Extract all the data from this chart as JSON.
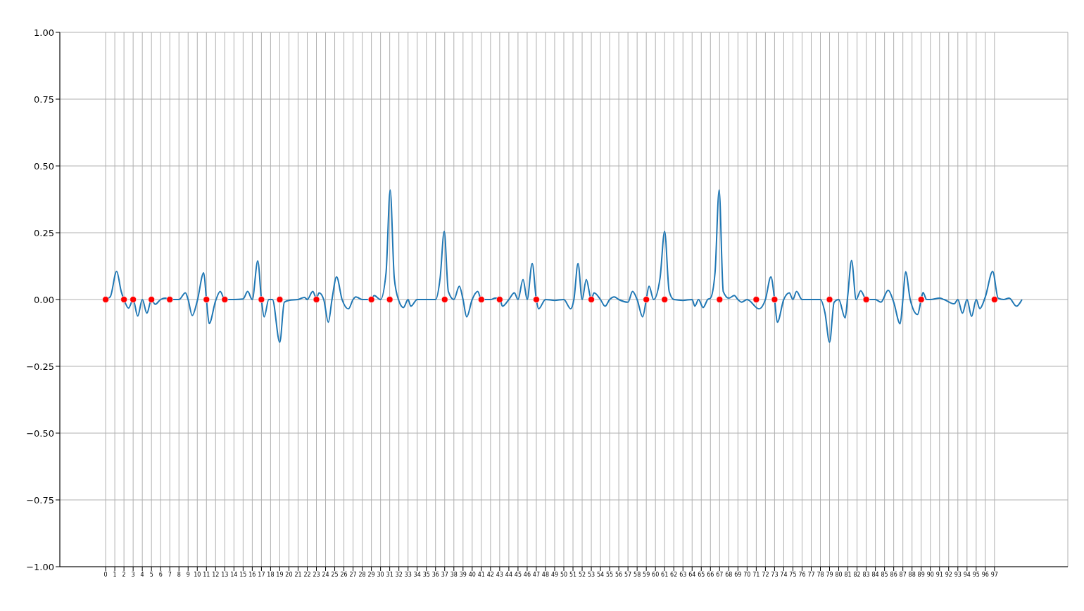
{
  "chart_data": {
    "type": "line",
    "xlim": [
      -5,
      105
    ],
    "ylim": [
      -1,
      1
    ],
    "xticks": [
      0,
      1,
      2,
      3,
      4,
      5,
      6,
      7,
      8,
      9,
      10,
      11,
      12,
      13,
      14,
      15,
      16,
      17,
      18,
      19,
      20,
      21,
      22,
      23,
      24,
      25,
      26,
      27,
      28,
      29,
      30,
      31,
      32,
      33,
      34,
      35,
      36,
      37,
      38,
      39,
      40,
      41,
      42,
      43,
      44,
      45,
      46,
      47,
      48,
      49,
      50,
      51,
      52,
      53,
      54,
      55,
      56,
      57,
      58,
      59,
      60,
      61,
      62,
      63,
      64,
      65,
      66,
      67,
      68,
      69,
      70,
      71,
      72,
      73,
      74,
      75,
      76,
      77,
      78,
      79,
      80,
      81,
      82,
      83,
      84,
      85,
      86,
      87,
      88,
      89,
      90,
      91,
      92,
      93,
      94,
      95,
      96,
      97
    ],
    "yticks": [
      {
        "value": -1,
        "label": "−1.00"
      },
      {
        "value": -0.75,
        "label": "−0.75"
      },
      {
        "value": -0.5,
        "label": "−0.50"
      },
      {
        "value": -0.25,
        "label": "−0.25"
      },
      {
        "value": 0,
        "label": "0.00"
      },
      {
        "value": 0.25,
        "label": "0.25"
      },
      {
        "value": 0.5,
        "label": "0.50"
      },
      {
        "value": 0.75,
        "label": "0.75"
      },
      {
        "value": 1,
        "label": "1.00"
      }
    ],
    "grid": true,
    "series": [
      {
        "color": "#1f77b4",
        "marker": "none",
        "x": [
          0,
          0.5,
          1.2,
          1.7,
          2,
          2.5,
          3,
          3.5,
          4,
          4.5,
          5,
          5.4,
          6,
          6.5,
          7,
          8,
          8.7,
          9,
          9.45,
          10,
          10.7,
          11,
          11.3,
          12,
          12.5,
          13,
          14,
          15,
          15.5,
          16,
          16.6,
          17,
          17.3,
          17.8,
          18.2,
          19,
          19.5,
          20,
          21,
          21.7,
          22,
          22.6,
          23,
          23.3,
          23.8,
          24.3,
          24.7,
          25.2,
          25.8,
          26.5,
          27,
          27.3,
          28,
          29,
          29.3,
          30,
          30.6,
          31.05,
          31.5,
          32,
          32.5,
          33,
          33.3,
          34,
          35,
          36,
          36.5,
          36.95,
          37.4,
          38,
          38.6,
          39,
          39.4,
          40,
          40.6,
          41,
          42,
          42.5,
          43,
          43.3,
          44,
          44.6,
          45,
          45.55,
          46,
          46.55,
          47,
          47.25,
          48,
          49,
          50,
          50.75,
          51.1,
          51.55,
          52,
          52.45,
          53,
          53.3,
          54,
          54.5,
          55,
          55.5,
          56,
          57,
          57.5,
          58,
          58.6,
          59,
          59.3,
          59.8,
          60.5,
          61,
          61.5,
          62,
          63,
          64,
          64.3,
          64.7,
          65.2,
          65.7,
          66,
          66.5,
          66.95,
          67.4,
          68,
          68.6,
          69,
          69.4,
          70,
          71.3,
          72,
          72.6,
          73,
          73.3,
          74,
          74.6,
          75,
          75.4,
          76,
          77,
          78,
          78.5,
          79,
          79.5,
          80,
          80.7,
          81,
          81.4,
          81.9,
          82.4,
          83,
          84,
          84.6,
          85.4,
          86,
          86.7,
          87,
          87.3,
          87.8,
          88.6,
          89,
          89.2,
          89.6,
          90,
          91,
          91.5,
          92.6,
          93,
          93.5,
          94,
          94.5,
          95,
          95.4,
          96,
          96.8,
          97.4,
          98,
          98.6,
          99.4,
          100
        ],
        "values": [
          0,
          0.01,
          0.105,
          0.03,
          0,
          -0.032,
          0,
          -0.062,
          0,
          -0.051,
          0,
          -0.018,
          0,
          0.005,
          0,
          0,
          0.025,
          0,
          -0.06,
          -0.005,
          0.1,
          0,
          -0.09,
          -0.005,
          0.03,
          0,
          0,
          0.002,
          0.03,
          0,
          0.145,
          0,
          -0.065,
          0,
          0,
          -0.16,
          -0.01,
          -0.003,
          0,
          0.008,
          0,
          0.03,
          0.005,
          0.025,
          0,
          -0.085,
          0,
          0.085,
          0,
          -0.035,
          0,
          0.01,
          0,
          0,
          0.015,
          0,
          0.1,
          0.41,
          0.08,
          -0.005,
          -0.03,
          0,
          -0.025,
          0,
          0,
          0,
          0.08,
          0.255,
          0.03,
          0,
          0.05,
          0,
          -0.065,
          0,
          0.03,
          0,
          0,
          0.005,
          0.005,
          -0.025,
          0,
          0.025,
          0,
          0.075,
          0,
          0.135,
          0,
          -0.035,
          0,
          -0.003,
          0,
          -0.035,
          0,
          0.135,
          0,
          0.075,
          0,
          0.025,
          0,
          -0.025,
          0,
          0.01,
          0,
          -0.01,
          0.03,
          0,
          -0.065,
          0,
          0.05,
          0,
          0.08,
          0.255,
          0.03,
          0,
          -0.003,
          0,
          -0.025,
          0,
          -0.03,
          0,
          0.005,
          0.1,
          0.41,
          0.03,
          0.005,
          0.015,
          0,
          -0.01,
          0,
          -0.035,
          0,
          0.085,
          0,
          -0.085,
          0,
          0.025,
          0,
          0.03,
          0,
          0,
          0,
          -0.05,
          -0.16,
          -0.01,
          0,
          -0.069,
          0.02,
          0.146,
          0,
          0.033,
          0,
          0,
          -0.01,
          0.035,
          -0.01,
          -0.091,
          0,
          0.104,
          0,
          -0.056,
          0,
          0.026,
          0,
          0,
          0.005,
          0,
          -0.016,
          0,
          -0.051,
          0,
          -0.063,
          0,
          -0.034,
          0.01,
          0.105,
          0.005,
          0,
          0.005,
          -0.025,
          0
        ]
      },
      {
        "type": "scatter",
        "color": "#ff0000",
        "marker": "circle",
        "x": [
          0,
          2,
          3,
          5,
          7,
          11,
          13,
          17,
          19,
          23,
          29,
          31,
          37,
          41,
          43,
          47,
          53,
          59,
          61,
          67,
          71,
          73,
          79,
          83,
          89,
          97
        ],
        "values": [
          0,
          0,
          0,
          0,
          0,
          0,
          0,
          0,
          0,
          0,
          0,
          0,
          0,
          0,
          0,
          0,
          0,
          0,
          0,
          0,
          0,
          0,
          0,
          0,
          0,
          0
        ]
      }
    ]
  }
}
